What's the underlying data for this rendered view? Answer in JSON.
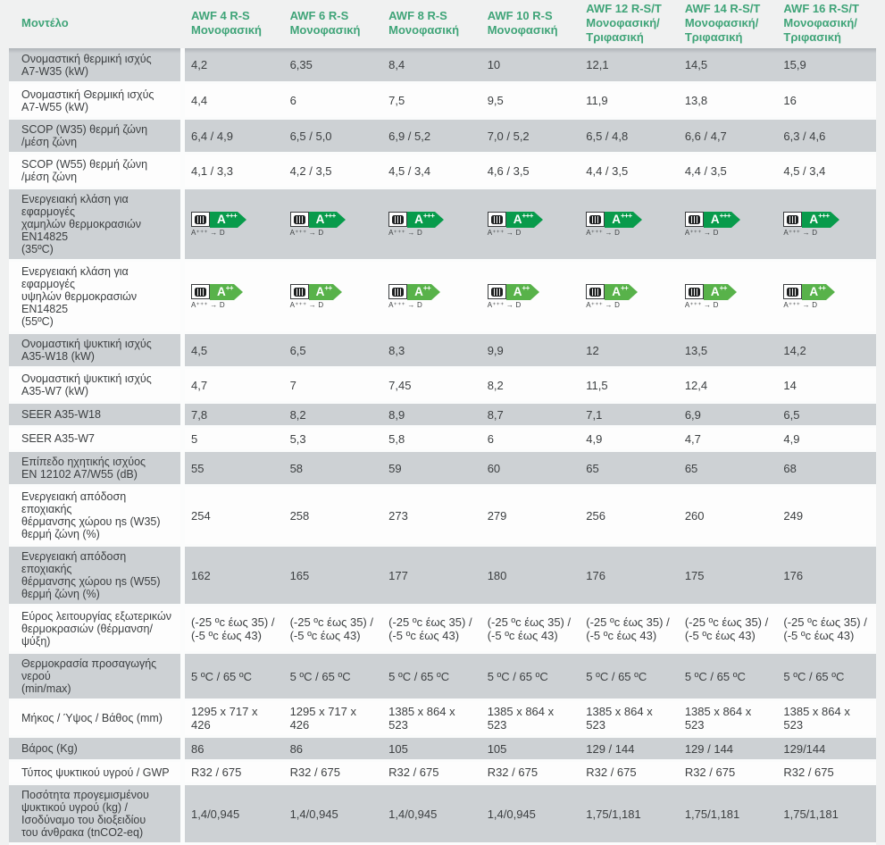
{
  "table": {
    "model_header": "Μοντέλο",
    "columns": [
      {
        "model": "AWF 4 R-S",
        "phase": "Μονοφασική"
      },
      {
        "model": "AWF 6 R-S",
        "phase": "Μονοφασική"
      },
      {
        "model": "AWF 8 R-S",
        "phase": "Μονοφασική"
      },
      {
        "model": "AWF 10 R-S",
        "phase": "Μονοφασική"
      },
      {
        "model": "AWF 12 R-S/T",
        "phase": "Μονοφασική/ Τριφασική"
      },
      {
        "model": "AWF 14 R-S/T",
        "phase": "Μονοφασική/ Τριφασική"
      },
      {
        "model": "AWF 16 R-S/T",
        "phase": "Μονοφασική/ Τριφασική"
      }
    ],
    "rows": [
      {
        "label": "Ονομαστική θερμική ισχύς\nA7-W35 (kW)",
        "type": "text",
        "values": [
          "4,2",
          "6,35",
          "8,4",
          "10",
          "12,1",
          "14,5",
          "15,9"
        ]
      },
      {
        "label": "Ονομαστική Θερμική ισχύς\nA7-W55 (kW)",
        "type": "text",
        "values": [
          "4,4",
          "6",
          "7,5",
          "9,5",
          "11,9",
          "13,8",
          "16"
        ]
      },
      {
        "label": "SCOP (W35) θερμή ζώνη\n/μέση ζώνη",
        "type": "text",
        "values": [
          "6,4 / 4,9",
          "6,5 / 5,0",
          "6,9 / 5,2",
          "7,0 / 5,2",
          "6,5 / 4,8",
          "6,6 / 4,7",
          "6,3 / 4,6"
        ]
      },
      {
        "label": "SCOP (W55) θερμή ζώνη\n/μέση ζώνη",
        "type": "text",
        "values": [
          "4,1 / 3,3",
          "4,2 / 3,5",
          "4,5 / 3,4",
          "4,6 / 3,5",
          "4,4 / 3,5",
          "4,4 / 3,5",
          "4,5 / 3,4"
        ]
      },
      {
        "label": "Ενεργειακή κλάση για εφαρμογές\nχαμηλών θερμοκρασιών EN14825\n(35ºC)",
        "type": "badge",
        "badge": {
          "rating_letter": "A",
          "rating_sup": "+++",
          "scale_text": "A⁺⁺⁺ → D",
          "color": "#089b4b"
        }
      },
      {
        "label": "Ενεργειακή κλάση για εφαρμογές\nυψηλών θερμοκρασιών EN14825\n(55ºC)",
        "type": "badge",
        "badge": {
          "rating_letter": "A",
          "rating_sup": "++",
          "scale_text": "A⁺⁺⁺ → D",
          "color": "#58b24a"
        }
      },
      {
        "label": "Ονομαστική ψυκτική ισχύς\nA35-W18 (kW)",
        "type": "text",
        "values": [
          "4,5",
          "6,5",
          "8,3",
          "9,9",
          "12",
          "13,5",
          "14,2"
        ]
      },
      {
        "label": "Ονομαστική ψυκτική ισχύς\nA35-W7 (kW)",
        "type": "text",
        "values": [
          "4,7",
          "7",
          "7,45",
          "8,2",
          "11,5",
          "12,4",
          "14"
        ]
      },
      {
        "label": "SEER A35-W18",
        "type": "text",
        "values": [
          "7,8",
          "8,2",
          "8,9",
          "8,7",
          "7,1",
          "6,9",
          "6,5"
        ]
      },
      {
        "label": "SEER A35-W7",
        "type": "text",
        "values": [
          "5",
          "5,3",
          "5,8",
          "6",
          "4,9",
          "4,7",
          "4,9"
        ]
      },
      {
        "label": "Επίπεδο ηχητικής ισχύος\nEN 12102 A7/W55 (dB)",
        "type": "text",
        "values": [
          "55",
          "58",
          "59",
          "60",
          "65",
          "65",
          "68"
        ]
      },
      {
        "label": "Ενεργειακή απόδοση εποχιακής\nθέρμανσης χώρου ηs (W35)\nθερμή ζώνη (%)",
        "type": "text",
        "values": [
          "254",
          "258",
          "273",
          "279",
          "256",
          "260",
          "249"
        ]
      },
      {
        "label": "Ενεργειακή απόδοση εποχιακής\nθέρμανσης χώρου ηs (W55)\nθερμή ζώνη (%)",
        "type": "text",
        "values": [
          "162",
          "165",
          "177",
          "180",
          "176",
          "175",
          "176"
        ]
      },
      {
        "label": "Εύρος λειτουργίας εξωτερικών\nθερμοκρασιών (θέρμανση/ψύξη)",
        "type": "text",
        "values": [
          "(-25 ºc έως 35) /\n(-5 ºc έως 43)",
          "(-25 ºc έως 35) /\n(-5 ºc έως 43)",
          "(-25 ºc έως 35) /\n(-5 ºc έως 43)",
          "(-25 ºc έως 35) /\n(-5 ºc έως 43)",
          "(-25 ºc έως 35) /\n(-5 ºc έως 43)",
          "(-25 ºc έως 35) /\n(-5 ºc έως 43)",
          "(-25 ºc έως 35) /\n(-5 ºc έως 43)"
        ]
      },
      {
        "label": "Θερμοκρασία προσαγωγής νερού\n(min/max)",
        "type": "text",
        "values": [
          "5 ºC / 65 ºC",
          "5 ºC / 65 ºC",
          "5 ºC / 65 ºC",
          "5 ºC / 65 ºC",
          "5 ºC / 65 ºC",
          "5 ºC / 65 ºC",
          "5 ºC / 65 ºC"
        ]
      },
      {
        "label": "Μήκος / Ύψος / Βάθος (mm)",
        "type": "text",
        "values": [
          "1295 x 717 x 426",
          "1295 x 717 x 426",
          "1385 x 864 x 523",
          "1385 x 864 x 523",
          "1385 x 864 x 523",
          "1385 x 864 x 523",
          "1385 x 864 x 523"
        ]
      },
      {
        "label": "Βάρος (Kg)",
        "type": "text",
        "values": [
          "86",
          "86",
          "105",
          "105",
          "129 / 144",
          "129 / 144",
          "129/144"
        ]
      },
      {
        "label": "Τύπος ψυκτικού υγρού / GWP",
        "type": "text",
        "values": [
          "R32 / 675",
          "R32 / 675",
          "R32 / 675",
          "R32 / 675",
          "R32 / 675",
          "R32 / 675",
          "R32 / 675"
        ]
      },
      {
        "label": "Ποσότητα προγεμισμένου\nψυκτικού υγρού (kg) /\nΙσοδύναμο του διοξειδίου\nτου άνθρακα (tnCO2-eq)",
        "type": "text",
        "values": [
          "1,4/0,945",
          "1,4/0,945",
          "1,4/0,945",
          "1,4/0,945",
          "1,75/1,181",
          "1,75/1,181",
          "1,75/1,181"
        ]
      }
    ],
    "colors": {
      "header_green": "#3fa478",
      "row_gray": "#cdd1d4",
      "badge_green_dark": "#089b4b",
      "badge_green_light": "#58b24a"
    }
  }
}
